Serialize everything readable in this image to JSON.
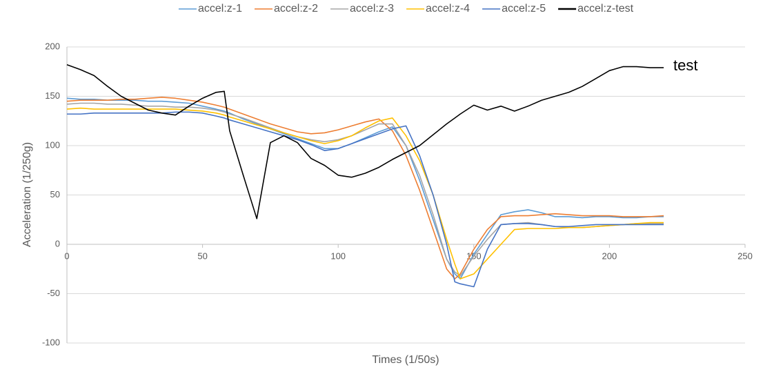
{
  "chart_data": {
    "type": "line",
    "x_label": "Times (1/50s)",
    "y_label": "Acceleration (1/250g)",
    "annotation": "test",
    "x": [
      0,
      5,
      10,
      15,
      20,
      25,
      30,
      35,
      40,
      45,
      50,
      55,
      58,
      60,
      65,
      70,
      75,
      80,
      85,
      90,
      95,
      100,
      105,
      110,
      115,
      120,
      125,
      130,
      135,
      140,
      143,
      145,
      150,
      155,
      160,
      165,
      170,
      175,
      180,
      185,
      190,
      195,
      200,
      205,
      210,
      215,
      220
    ],
    "series": [
      {
        "name": "accel:z-1",
        "color": "#5b9bd5",
        "width": 1.6,
        "values": [
          148,
          147,
          147,
          146,
          146,
          146,
          145,
          145,
          144,
          143,
          140,
          137,
          135,
          133,
          127,
          122,
          117,
          112,
          107,
          102,
          97,
          97,
          102,
          108,
          114,
          119,
          100,
          65,
          25,
          -15,
          -30,
          -35,
          -10,
          10,
          30,
          33,
          35,
          32,
          28,
          28,
          27,
          28,
          28,
          27,
          27,
          28,
          28
        ]
      },
      {
        "name": "accel:z-2",
        "color": "#ed7d31",
        "width": 1.6,
        "values": [
          145,
          146,
          146,
          146,
          147,
          147,
          148,
          149,
          148,
          146,
          144,
          141,
          139,
          137,
          132,
          127,
          122,
          118,
          114,
          112,
          113,
          116,
          120,
          124,
          127,
          115,
          90,
          55,
          15,
          -25,
          -35,
          -30,
          -5,
          15,
          28,
          29,
          29,
          30,
          31,
          30,
          29,
          29,
          29,
          28,
          28,
          28,
          29
        ]
      },
      {
        "name": "accel:z-3",
        "color": "#a5a5a5",
        "width": 1.6,
        "values": [
          142,
          143,
          143,
          142,
          142,
          141,
          140,
          140,
          139,
          139,
          138,
          136,
          134,
          132,
          128,
          123,
          118,
          113,
          109,
          106,
          104,
          106,
          110,
          116,
          122,
          122,
          100,
          70,
          30,
          -15,
          -28,
          -32,
          -12,
          5,
          20,
          21,
          22,
          20,
          18,
          17,
          17,
          18,
          19,
          20,
          21,
          21,
          21
        ]
      },
      {
        "name": "accel:z-4",
        "color": "#ffc000",
        "width": 1.6,
        "values": [
          137,
          138,
          137,
          137,
          137,
          137,
          137,
          137,
          137,
          136,
          135,
          133,
          131,
          129,
          125,
          121,
          117,
          113,
          109,
          105,
          102,
          105,
          110,
          118,
          125,
          128,
          110,
          85,
          50,
          5,
          -20,
          -35,
          -30,
          -15,
          0,
          15,
          16,
          16,
          16,
          17,
          17,
          18,
          19,
          20,
          21,
          22,
          22
        ]
      },
      {
        "name": "accel:z-5",
        "color": "#4472c4",
        "width": 1.6,
        "values": [
          132,
          132,
          133,
          133,
          133,
          133,
          133,
          133,
          134,
          134,
          133,
          130,
          128,
          126,
          122,
          118,
          114,
          110,
          106,
          101,
          95,
          97,
          102,
          107,
          112,
          117,
          120,
          90,
          50,
          0,
          -38,
          -40,
          -43,
          -5,
          20,
          21,
          21,
          20,
          18,
          18,
          19,
          20,
          20,
          20,
          20,
          20,
          20
        ]
      },
      {
        "name": "accel:z-test",
        "color": "#000000",
        "width": 2.6,
        "values": [
          182,
          177,
          171,
          160,
          150,
          143,
          136,
          133,
          131,
          140,
          148,
          154,
          155,
          115,
          70,
          26,
          103,
          110,
          103,
          87,
          80,
          70,
          68,
          72,
          78,
          86,
          93,
          100,
          111,
          122,
          128,
          132,
          141,
          136,
          140,
          135,
          140,
          146,
          150,
          154,
          160,
          168,
          176,
          180,
          180,
          179,
          179
        ]
      }
    ],
    "xlim": [
      0,
      250
    ],
    "xticks": [
      0,
      50,
      100,
      150,
      200,
      250
    ],
    "ylim": [
      -100,
      200
    ],
    "yticks": [
      -100,
      -50,
      0,
      50,
      100,
      150,
      200
    ],
    "grid": true,
    "legend": "top"
  }
}
